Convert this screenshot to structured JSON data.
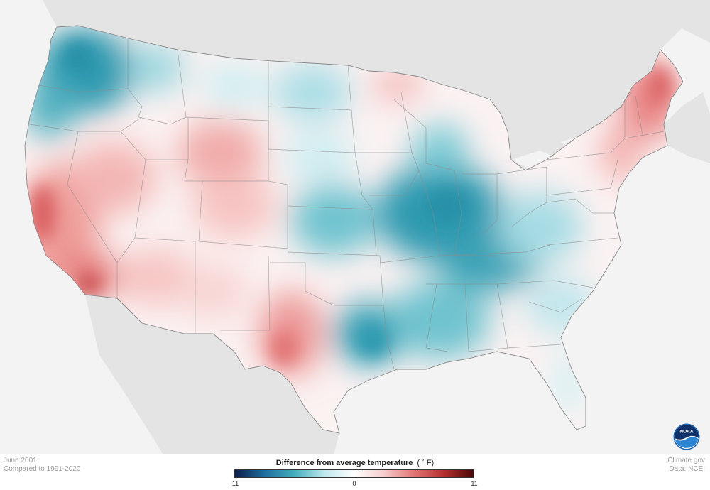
{
  "caption": {
    "date": "June 2001",
    "baseline": "Compared to 1991-2020"
  },
  "credits": {
    "site": "Climate.gov",
    "source": "Data: NCEI"
  },
  "legend": {
    "title": "Difference from average temperature",
    "unit": "( ˚ F)",
    "min_label": "-11",
    "mid_label": "0",
    "max_label": "11",
    "range": [
      -11,
      11
    ],
    "colors": [
      "#0d1d4a",
      "#1f6fa0",
      "#44aebd",
      "#bfe8ee",
      "#ffffff",
      "#f6cccc",
      "#e27575",
      "#b6302f",
      "#4a0606"
    ]
  },
  "colors": {
    "ocean": "#f3f3f3",
    "neighbor_land": "#e4e4e4",
    "state_border": "#8c8c8c",
    "cool_strong": "#2f9ab0",
    "cool_mid": "#7ccbd5",
    "cool_light": "#c8ecf0",
    "warm_light": "#f8d6d4",
    "warm_mid": "#ee9b98",
    "warm_strong": "#d95f60"
  },
  "logo": {
    "icon": "noaa-logo-icon",
    "text": "NOAA"
  }
}
